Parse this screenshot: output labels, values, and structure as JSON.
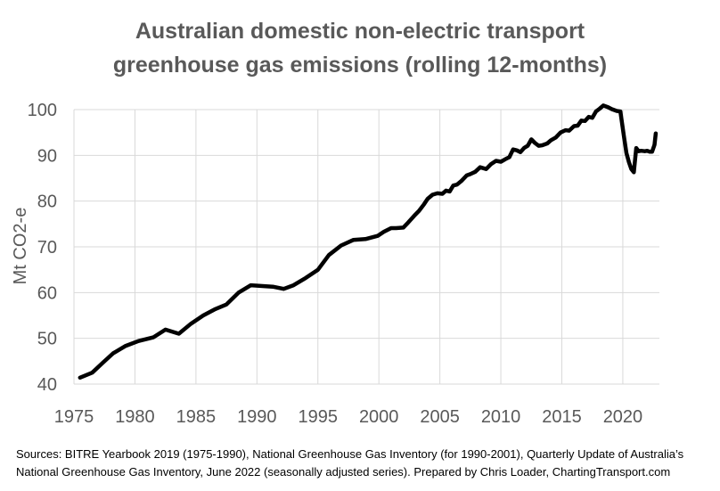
{
  "chart_data": {
    "type": "line",
    "title_lines": [
      "Australian domestic non-electric transport",
      "greenhouse gas emissions (rolling 12-months)"
    ],
    "xlabel": "",
    "ylabel": "Mt CO2-e",
    "xlim": [
      1975,
      2023
    ],
    "ylim": [
      40,
      100
    ],
    "xticks": [
      "1975",
      "1980",
      "1985",
      "1990",
      "1995",
      "2000",
      "2005",
      "2010",
      "2015",
      "2020"
    ],
    "yticks": [
      "40",
      "50",
      "60",
      "70",
      "80",
      "90",
      "100"
    ],
    "grid": "vertical and horizontal major gridlines",
    "line_color": "#000000",
    "series": [
      {
        "x": [
          1975.5,
          1976.5,
          1977.3,
          1978.2,
          1979.2,
          1980.3,
          1981.5,
          1982.5,
          1983.6,
          1984.6,
          1985.6,
          1986.6,
          1987.5,
          1988.5,
          1989.5,
          1990.6,
          1991.3,
          1992.2,
          1993.0,
          1994.0,
          1995.0,
          1995.9,
          1996.9,
          1997.9,
          1998.9,
          1999.9,
          2000.4,
          2001.0,
          2001.4,
          2002.0,
          2002.4,
          2002.9,
          2003.3,
          2003.7,
          2004.0,
          2004.4,
          2004.8,
          2005.2,
          2005.5,
          2005.8,
          2006.1,
          2006.4,
          2006.8,
          2007.2,
          2007.5,
          2007.9,
          2008.3,
          2008.8,
          2009.2,
          2009.6,
          2010.0,
          2010.4,
          2010.7,
          2011.0,
          2011.3,
          2011.6,
          2011.9,
          2012.2,
          2012.5,
          2012.8,
          2013.1,
          2013.4,
          2013.8,
          2014.1,
          2014.5,
          2014.9,
          2015.3,
          2015.6,
          2016.0,
          2016.3,
          2016.6,
          2016.9,
          2017.2,
          2017.5,
          2017.8,
          2018.1,
          2018.4,
          2018.8,
          2019.1,
          2019.5,
          2019.8,
          2020.1,
          2020.3,
          2020.5,
          2020.7,
          2020.9,
          2021.1,
          2021.3,
          2021.5,
          2021.8,
          2022.0,
          2022.2,
          2022.4,
          2022.6,
          2022.7
        ],
        "y": [
          41.4,
          42.5,
          44.5,
          46.7,
          48.3,
          49.4,
          50.2,
          51.9,
          51.0,
          53.2,
          55.0,
          56.4,
          57.4,
          60.0,
          61.6,
          61.4,
          61.3,
          60.8,
          61.6,
          63.2,
          65.0,
          68.2,
          70.3,
          71.5,
          71.7,
          72.4,
          73.3,
          74.1,
          74.1,
          74.2,
          75.3,
          76.8,
          77.9,
          79.3,
          80.5,
          81.4,
          81.7,
          81.6,
          82.3,
          82.1,
          83.4,
          83.6,
          84.5,
          85.6,
          85.9,
          86.4,
          87.4,
          87.0,
          88.1,
          88.8,
          88.6,
          89.2,
          89.6,
          91.3,
          91.1,
          90.7,
          91.6,
          92.1,
          93.5,
          92.7,
          92.1,
          92.2,
          92.6,
          93.3,
          93.9,
          95.0,
          95.5,
          95.4,
          96.4,
          96.5,
          97.6,
          97.5,
          98.4,
          98.2,
          99.6,
          100.2,
          100.9,
          100.5,
          100.1,
          99.7,
          99.6,
          94.0,
          90.5,
          88.5,
          87.0,
          86.3,
          91.6,
          90.9,
          91.0,
          90.9,
          91.0,
          90.8,
          90.8,
          92.3,
          94.8
        ]
      }
    ]
  },
  "sources": {
    "line1": "Sources: BITRE Yearbook 2019 (1975-1990),  National Greenhouse Gas Inventory (for 1990-2001), Quarterly Update of Australia’s",
    "line2": "National Greenhouse Gas Inventory, June 2022 (seasonally adjusted series). Prepared by Chris Loader, ChartingTransport.com"
  }
}
